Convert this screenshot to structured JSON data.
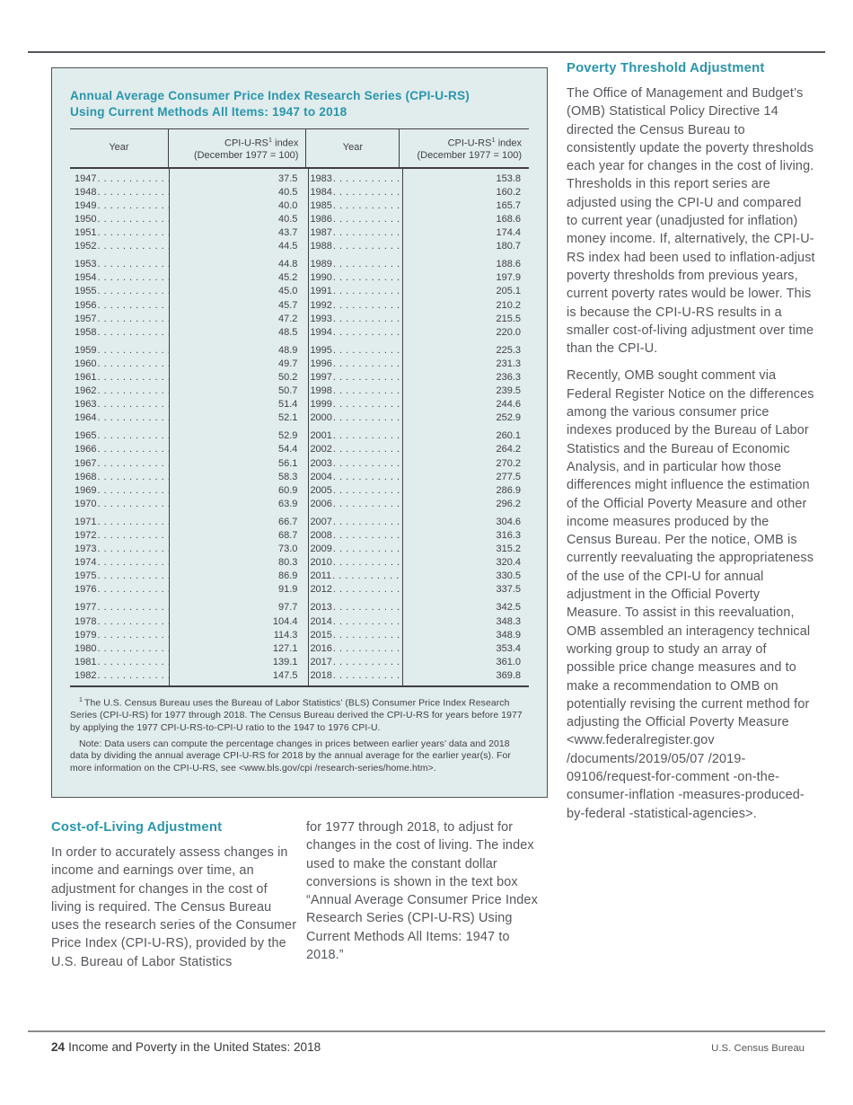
{
  "accent_color": "#2996ad",
  "table_box": {
    "title_line1": "Annual Average Consumer Price Index Research Series (CPI-U-RS)",
    "title_line2": "Using Current Methods All Items: 1947 to 2018",
    "headers": {
      "year": "Year",
      "index_name": "CPI-U-RS",
      "index_footnote_marker": "1",
      "index_suffix": " index",
      "index_base": "(December 1977 = 100)"
    },
    "chart_data": {
      "type": "table",
      "title": "Annual Average Consumer Price Index Research Series (CPI-U-RS) Using Current Methods All Items: 1947 to 2018",
      "columns": [
        "Year",
        "CPI-U-RS index (December 1977 = 100)"
      ],
      "left_rows": [
        {
          "year": "1947",
          "value": "37.5"
        },
        {
          "year": "1948",
          "value": "40.5"
        },
        {
          "year": "1949",
          "value": "40.0"
        },
        {
          "year": "1950",
          "value": "40.5"
        },
        {
          "year": "1951",
          "value": "43.7"
        },
        {
          "year": "1952",
          "value": "44.5"
        },
        {
          "year": "1953",
          "value": "44.8"
        },
        {
          "year": "1954",
          "value": "45.2"
        },
        {
          "year": "1955",
          "value": "45.0"
        },
        {
          "year": "1956",
          "value": "45.7"
        },
        {
          "year": "1957",
          "value": "47.2"
        },
        {
          "year": "1958",
          "value": "48.5"
        },
        {
          "year": "1959",
          "value": "48.9"
        },
        {
          "year": "1960",
          "value": "49.7"
        },
        {
          "year": "1961",
          "value": "50.2"
        },
        {
          "year": "1962",
          "value": "50.7"
        },
        {
          "year": "1963",
          "value": "51.4"
        },
        {
          "year": "1964",
          "value": "52.1"
        },
        {
          "year": "1965",
          "value": "52.9"
        },
        {
          "year": "1966",
          "value": "54.4"
        },
        {
          "year": "1967",
          "value": "56.1"
        },
        {
          "year": "1968",
          "value": "58.3"
        },
        {
          "year": "1969",
          "value": "60.9"
        },
        {
          "year": "1970",
          "value": "63.9"
        },
        {
          "year": "1971",
          "value": "66.7"
        },
        {
          "year": "1972",
          "value": "68.7"
        },
        {
          "year": "1973",
          "value": "73.0"
        },
        {
          "year": "1974",
          "value": "80.3"
        },
        {
          "year": "1975",
          "value": "86.9"
        },
        {
          "year": "1976",
          "value": "91.9"
        },
        {
          "year": "1977",
          "value": "97.7"
        },
        {
          "year": "1978",
          "value": "104.4"
        },
        {
          "year": "1979",
          "value": "114.3"
        },
        {
          "year": "1980",
          "value": "127.1"
        },
        {
          "year": "1981",
          "value": "139.1"
        },
        {
          "year": "1982",
          "value": "147.5"
        }
      ],
      "right_rows": [
        {
          "year": "1983",
          "value": "153.8"
        },
        {
          "year": "1984",
          "value": "160.2"
        },
        {
          "year": "1985",
          "value": "165.7"
        },
        {
          "year": "1986",
          "value": "168.6"
        },
        {
          "year": "1987",
          "value": "174.4"
        },
        {
          "year": "1988",
          "value": "180.7"
        },
        {
          "year": "1989",
          "value": "188.6"
        },
        {
          "year": "1990",
          "value": "197.9"
        },
        {
          "year": "1991",
          "value": "205.1"
        },
        {
          "year": "1992",
          "value": "210.2"
        },
        {
          "year": "1993",
          "value": "215.5"
        },
        {
          "year": "1994",
          "value": "220.0"
        },
        {
          "year": "1995",
          "value": "225.3"
        },
        {
          "year": "1996",
          "value": "231.3"
        },
        {
          "year": "1997",
          "value": "236.3"
        },
        {
          "year": "1998",
          "value": "239.5"
        },
        {
          "year": "1999",
          "value": "244.6"
        },
        {
          "year": "2000",
          "value": "252.9"
        },
        {
          "year": "2001",
          "value": "260.1"
        },
        {
          "year": "2002",
          "value": "264.2"
        },
        {
          "year": "2003",
          "value": "270.2"
        },
        {
          "year": "2004",
          "value": "277.5"
        },
        {
          "year": "2005",
          "value": "286.9"
        },
        {
          "year": "2006",
          "value": "296.2"
        },
        {
          "year": "2007",
          "value": "304.6"
        },
        {
          "year": "2008",
          "value": "316.3"
        },
        {
          "year": "2009",
          "value": "315.2"
        },
        {
          "year": "2010",
          "value": "320.4"
        },
        {
          "year": "2011",
          "value": "330.5"
        },
        {
          "year": "2012",
          "value": "337.5"
        },
        {
          "year": "2013",
          "value": "342.5"
        },
        {
          "year": "2014",
          "value": "348.3"
        },
        {
          "year": "2015",
          "value": "348.9"
        },
        {
          "year": "2016",
          "value": "353.4"
        },
        {
          "year": "2017",
          "value": "361.0"
        },
        {
          "year": "2018",
          "value": "369.8"
        }
      ]
    },
    "footnote": {
      "marker": "1",
      "text": "The U.S. Census Bureau uses the Bureau of Labor Statistics’ (BLS) Consumer Price Index Research Series (CPI-U-RS) for 1977 through 2018. The Census Bureau derived the CPI-U-RS for years before 1977 by applying the 1977 CPI-U-RS-to-CPI-U ratio to the 1947 to 1976 CPI-U."
    },
    "note": "Note: Data users can compute the percentage changes in prices between earlier years’ data and 2018 data by dividing the annual average CPI-U-RS for 2018 by the annual average for the earlier year(s). For more information on the CPI-U-RS, see <www.bls.gov/cpi /research-series/home.htm>."
  },
  "right_column": {
    "heading": "Poverty Threshold Adjustment",
    "paragraph1": "The Office of Management and Budget’s (OMB) Statistical Policy Directive 14 directed the Census Bureau to consistently update the poverty thresholds each year for changes in the cost of living. Thresholds in this report series are adjusted using the CPI-U and compared to current year (unadjusted for inflation) money income. If, alternatively, the CPI-U-RS index had been used to inflation-adjust poverty thresholds from previous years, current poverty rates would be lower. This is because the CPI-U-RS results in a smaller cost-of-living adjustment over time than the CPI-U.",
    "paragraph2": "Recently, OMB sought comment via Federal Register Notice on the differences among the various consumer price indexes produced by the Bureau of Labor Statistics and the Bureau of Economic Analysis, and in particular how those differences might influence the estimation of the Official Poverty Measure and other income measures produced by the Census Bureau. Per the notice, OMB is currently reevaluating the appropriateness of the use of the CPI-U for annual adjustment in the Official Poverty Measure. To assist in this reevaluation, OMB assembled an interagency technical working group to study an array of possible price change measures and to make a recommendation to OMB on potentially revising the current method for adjusting the Official Poverty Measure <www.federalregister.gov /documents/2019/05/07 /2019-09106/request-for-comment -on-the-consumer-inflation -measures-produced-by-federal -statistical-agencies>."
  },
  "bottom_left": {
    "heading": "Cost-of-Living Adjustment",
    "paragraph": "In order to accurately assess changes in income and earnings over time, an adjustment for changes in the cost of living is required. The Census Bureau uses the research series of the Consumer Price Index (CPI-U-RS), provided by the U.S. Bureau of Labor Statistics"
  },
  "bottom_middle": {
    "paragraph": "for 1977 through 2018, to adjust for changes in the cost of living. The index used to make the constant dollar conversions is shown in the text box “Annual Average Consumer Price Index Research Series (CPI-U-RS) Using Current Methods All Items: 1947 to 2018.”"
  },
  "footer": {
    "page_number": "24",
    "report_title": "Income and Poverty in the United States: 2018",
    "right_text": "U.S. Census Bureau"
  }
}
